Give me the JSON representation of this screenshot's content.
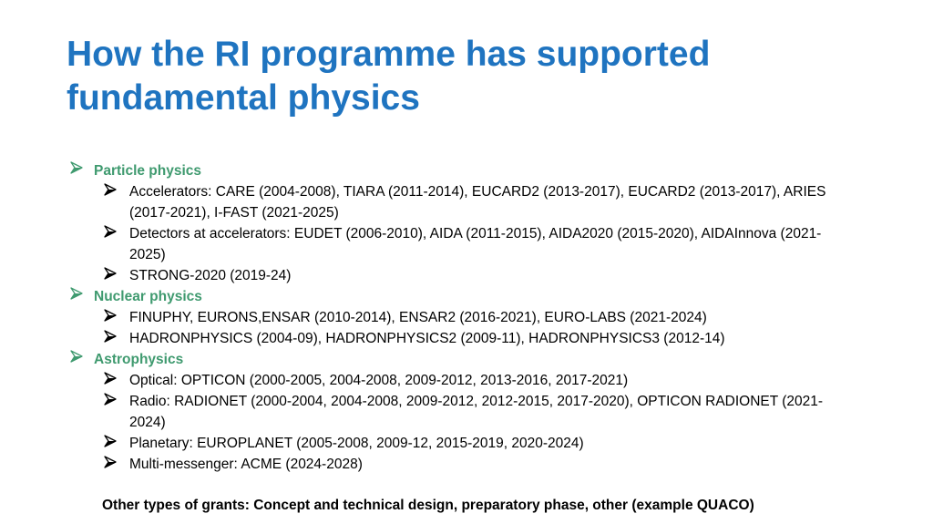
{
  "colors": {
    "title": "#1f74c0",
    "category": "#3f9a6f",
    "category_arrow": "#3f9a6f",
    "item_arrow": "#000000",
    "text": "#000000"
  },
  "title": "How the RI programme has supported fundamental physics",
  "sections": [
    {
      "label": "Particle physics",
      "icon": "arrow-bullet-icon",
      "items": [
        "Accelerators: CARE (2004-2008), TIARA (2011-2014), EUCARD2 (2013-2017), EUCARD2 (2013-2017), ARIES (2017-2021), I-FAST (2021-2025)",
        "Detectors at accelerators: EUDET (2006-2010), AIDA (2011-2015), AIDA2020 (2015-2020), AIDAInnova (2021-2025)",
        "STRONG-2020 (2019-24)"
      ]
    },
    {
      "label": "Nuclear physics",
      "icon": "arrow-bullet-icon",
      "items": [
        "FINUPHY, EURONS,ENSAR (2010-2014), ENSAR2 (2016-2021), EURO-LABS (2021-2024)",
        "HADRONPHYSICS (2004-09), HADRONPHYSICS2 (2009-11), HADRONPHYSICS3 (2012-14)"
      ]
    },
    {
      "label": "Astrophysics",
      "icon": "arrow-bullet-icon",
      "items": [
        "Optical: OPTICON (2000-2005, 2004-2008, 2009-2012, 2013-2016, 2017-2021)",
        "Radio: RADIONET (2000-2004, 2004-2008, 2009-2012, 2012-2015, 2017-2020), OPTICON RADIONET (2021-2024)",
        "Planetary: EUROPLANET (2005-2008, 2009-12, 2015-2019, 2020-2024)",
        "Multi-messenger: ACME (2024-2028)"
      ]
    }
  ],
  "footer": "Other types of grants: Concept and technical design, preparatory phase, other (example QUACO)"
}
